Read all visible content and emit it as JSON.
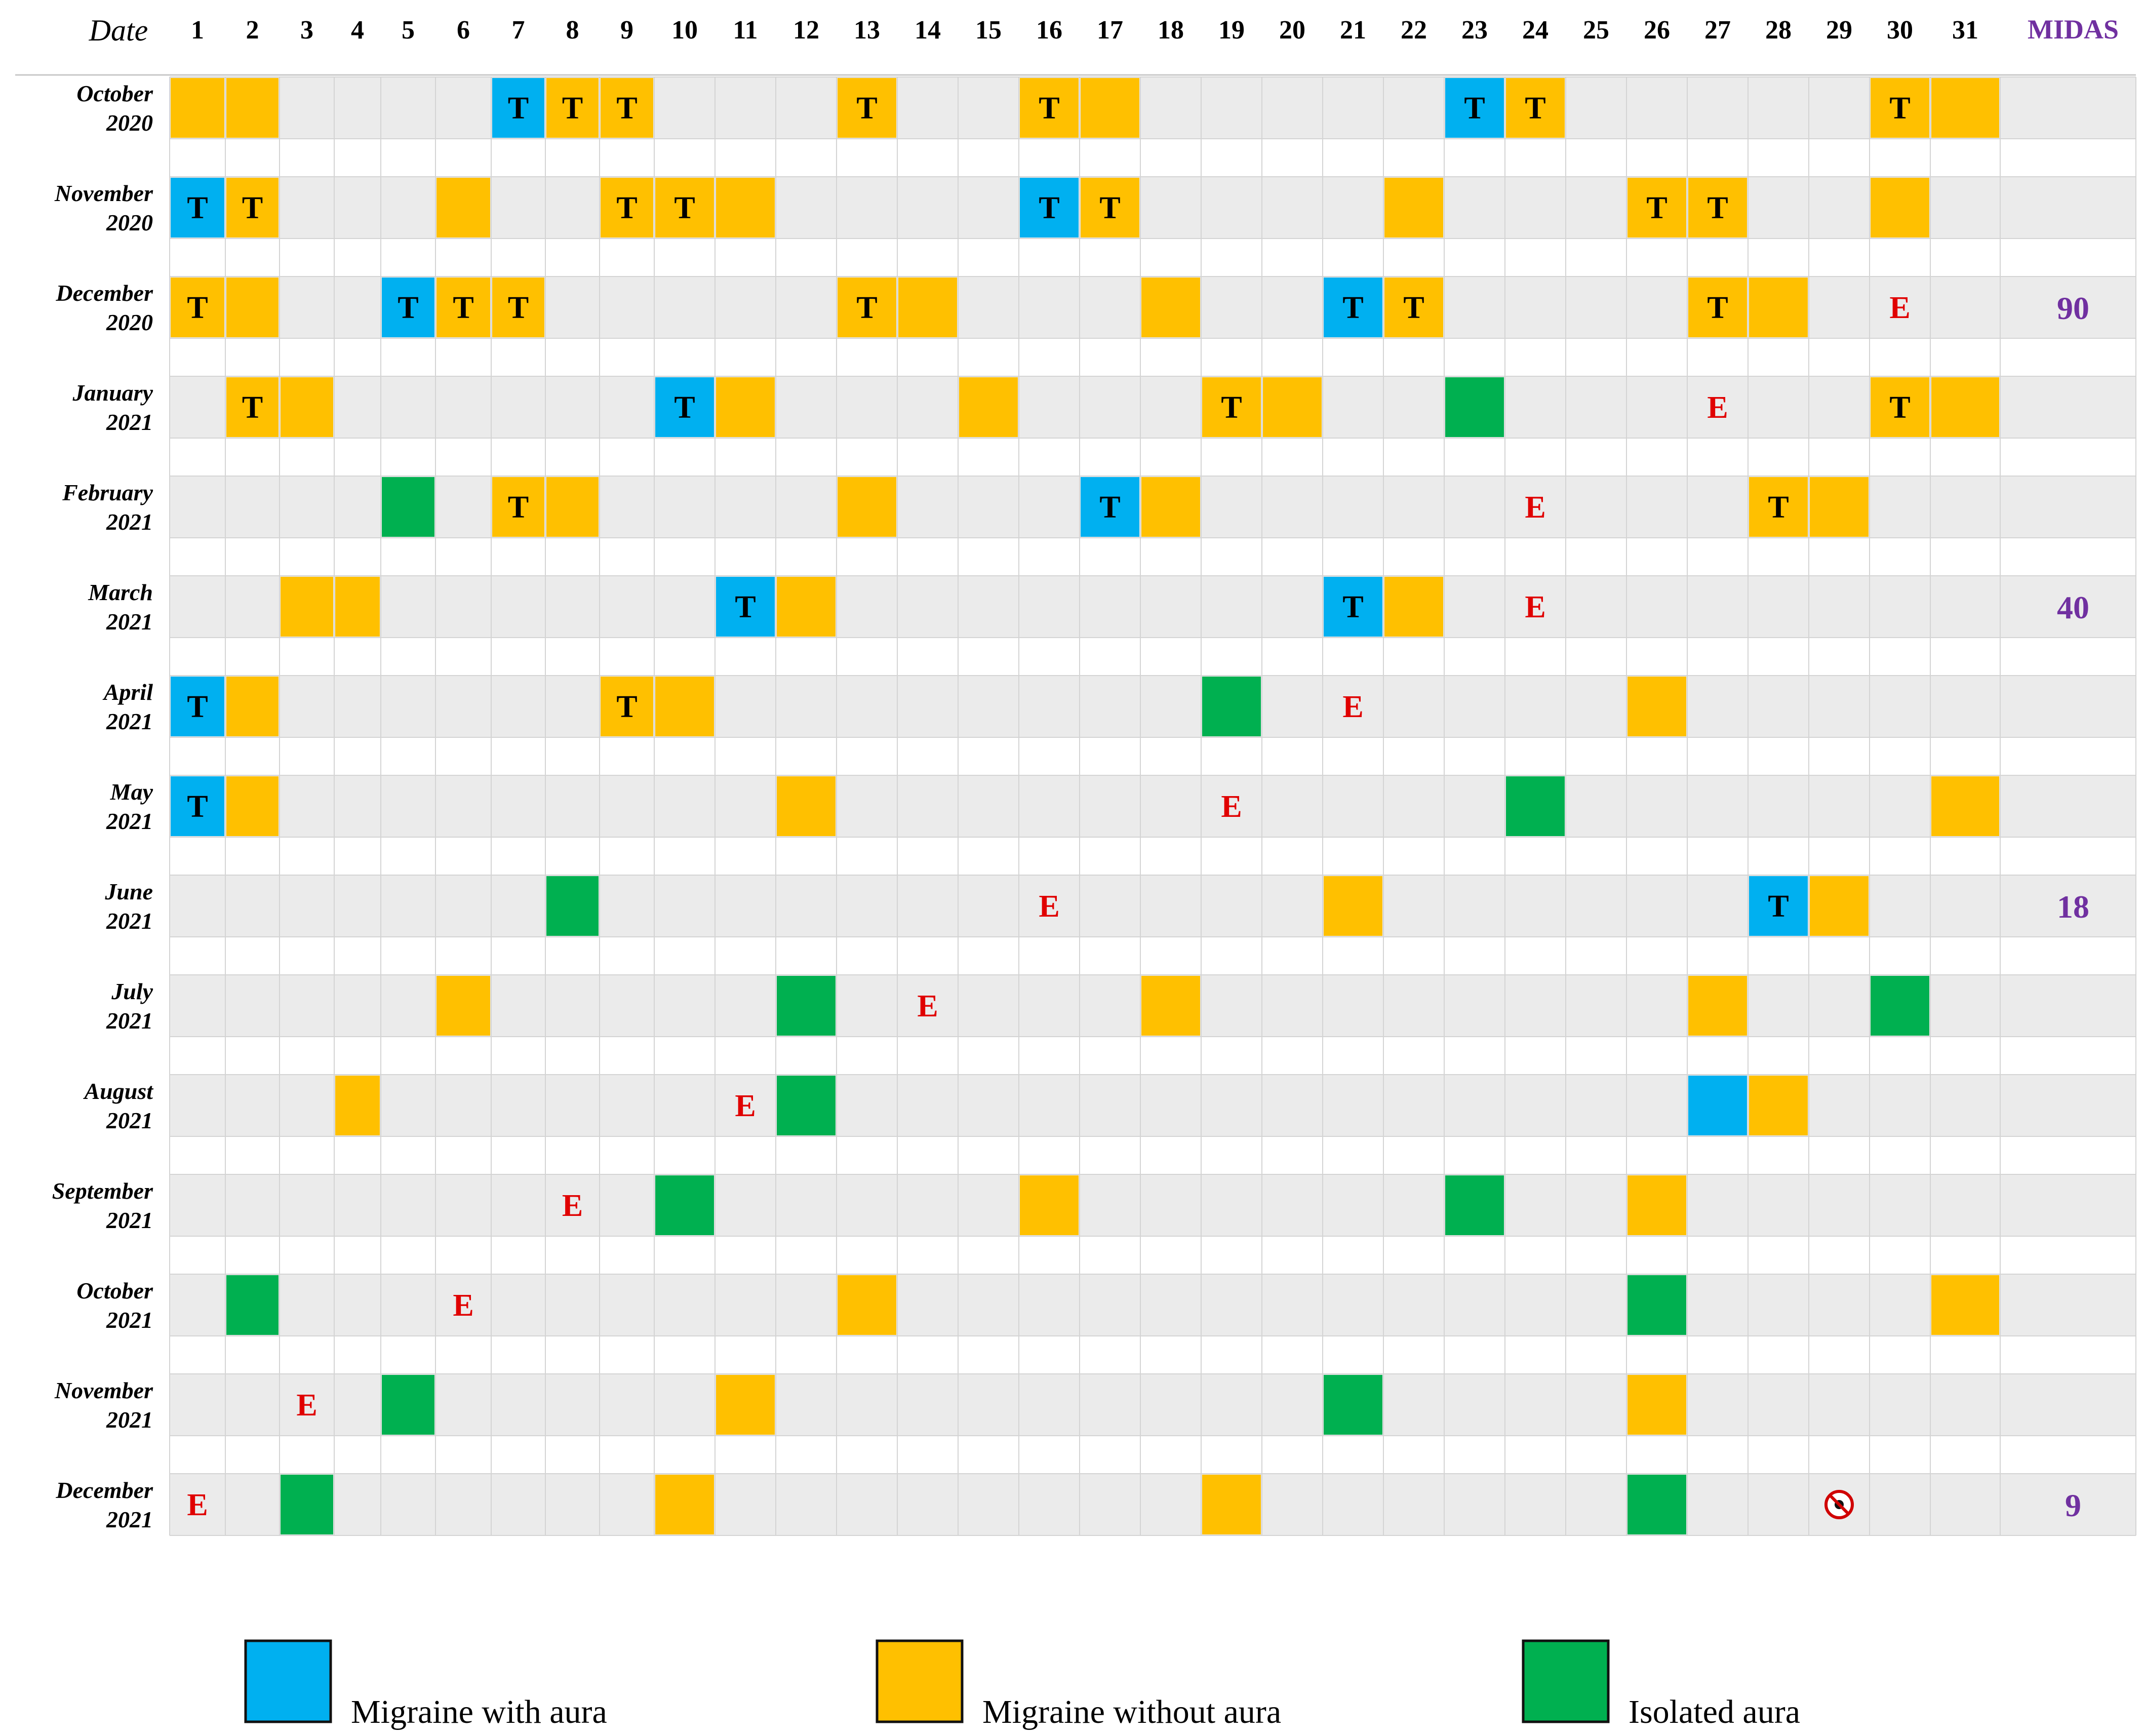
{
  "chart_data": {
    "type": "table",
    "header": {
      "date_label": "Date",
      "midas_label": "MIDAS"
    },
    "days": [
      1,
      2,
      3,
      4,
      5,
      6,
      7,
      8,
      9,
      10,
      11,
      12,
      13,
      14,
      15,
      16,
      17,
      18,
      19,
      20,
      21,
      22,
      23,
      24,
      25,
      26,
      27,
      28,
      29,
      30,
      31
    ],
    "categories": {
      "A": {
        "name": "Migraine with aura",
        "color": "#00b0f0"
      },
      "O": {
        "name": "Migraine without aura",
        "color": "#ffc000"
      },
      "G": {
        "name": "Isolated aura",
        "color": "#00b050"
      }
    },
    "legend": [
      {
        "key": "A",
        "label": "Migraine with aura"
      },
      {
        "key": "O",
        "label": "Migraine without aura"
      },
      {
        "key": "G",
        "label": "Isolated aura"
      }
    ],
    "marker_texts": {
      "T": "T",
      "E": "E"
    },
    "rows": [
      {
        "month": "October",
        "year": "2020",
        "midas": "",
        "e_day": null,
        "events": [
          {
            "day": 1,
            "type": "O"
          },
          {
            "day": 2,
            "type": "O"
          },
          {
            "day": 7,
            "type": "A",
            "t": true
          },
          {
            "day": 8,
            "type": "O",
            "t": true
          },
          {
            "day": 9,
            "type": "O",
            "t": true
          },
          {
            "day": 13,
            "type": "O",
            "t": true
          },
          {
            "day": 16,
            "type": "O",
            "t": true
          },
          {
            "day": 17,
            "type": "O"
          },
          {
            "day": 23,
            "type": "A",
            "t": true
          },
          {
            "day": 24,
            "type": "O",
            "t": true
          },
          {
            "day": 30,
            "type": "O",
            "t": true
          },
          {
            "day": 31,
            "type": "O"
          }
        ]
      },
      {
        "month": "November",
        "year": "2020",
        "midas": "",
        "e_day": null,
        "events": [
          {
            "day": 1,
            "type": "A",
            "t": true
          },
          {
            "day": 2,
            "type": "O",
            "t": true
          },
          {
            "day": 6,
            "type": "O"
          },
          {
            "day": 9,
            "type": "O",
            "t": true
          },
          {
            "day": 10,
            "type": "O",
            "t": true
          },
          {
            "day": 11,
            "type": "O"
          },
          {
            "day": 16,
            "type": "A",
            "t": true
          },
          {
            "day": 17,
            "type": "O",
            "t": true
          },
          {
            "day": 22,
            "type": "O"
          },
          {
            "day": 26,
            "type": "O",
            "t": true
          },
          {
            "day": 27,
            "type": "O",
            "t": true
          },
          {
            "day": 30,
            "type": "O"
          }
        ]
      },
      {
        "month": "December",
        "year": "2020",
        "midas": "90",
        "e_day": 30,
        "events": [
          {
            "day": 1,
            "type": "O",
            "t": true
          },
          {
            "day": 2,
            "type": "O"
          },
          {
            "day": 5,
            "type": "A",
            "t": true
          },
          {
            "day": 6,
            "type": "O",
            "t": true
          },
          {
            "day": 7,
            "type": "O",
            "t": true
          },
          {
            "day": 13,
            "type": "O",
            "t": true
          },
          {
            "day": 14,
            "type": "O"
          },
          {
            "day": 18,
            "type": "O"
          },
          {
            "day": 21,
            "type": "A",
            "t": true
          },
          {
            "day": 22,
            "type": "O",
            "t": true
          },
          {
            "day": 27,
            "type": "O",
            "t": true
          },
          {
            "day": 28,
            "type": "O"
          }
        ]
      },
      {
        "month": "January",
        "year": "2021",
        "midas": "",
        "e_day": 27,
        "events": [
          {
            "day": 2,
            "type": "O",
            "t": true
          },
          {
            "day": 3,
            "type": "O"
          },
          {
            "day": 10,
            "type": "A",
            "t": true
          },
          {
            "day": 11,
            "type": "O"
          },
          {
            "day": 15,
            "type": "O"
          },
          {
            "day": 19,
            "type": "O",
            "t": true
          },
          {
            "day": 20,
            "type": "O"
          },
          {
            "day": 23,
            "type": "G"
          },
          {
            "day": 30,
            "type": "O",
            "t": true
          },
          {
            "day": 31,
            "type": "O"
          }
        ]
      },
      {
        "month": "February",
        "year": "2021",
        "midas": "",
        "e_day": 24,
        "events": [
          {
            "day": 5,
            "type": "G"
          },
          {
            "day": 7,
            "type": "O",
            "t": true
          },
          {
            "day": 8,
            "type": "O"
          },
          {
            "day": 13,
            "type": "O"
          },
          {
            "day": 17,
            "type": "A",
            "t": true
          },
          {
            "day": 18,
            "type": "O"
          },
          {
            "day": 28,
            "type": "O",
            "t": true
          },
          {
            "day": 29,
            "type": "O"
          }
        ]
      },
      {
        "month": "March",
        "year": "2021",
        "midas": "40",
        "e_day": 24,
        "events": [
          {
            "day": 3,
            "type": "O"
          },
          {
            "day": 4,
            "type": "O"
          },
          {
            "day": 11,
            "type": "A",
            "t": true
          },
          {
            "day": 12,
            "type": "O"
          },
          {
            "day": 21,
            "type": "A",
            "t": true
          },
          {
            "day": 22,
            "type": "O"
          }
        ]
      },
      {
        "month": "April",
        "year": "2021",
        "midas": "",
        "e_day": 21,
        "events": [
          {
            "day": 1,
            "type": "A",
            "t": true
          },
          {
            "day": 2,
            "type": "O"
          },
          {
            "day": 9,
            "type": "O",
            "t": true
          },
          {
            "day": 10,
            "type": "O"
          },
          {
            "day": 19,
            "type": "G"
          },
          {
            "day": 26,
            "type": "O"
          }
        ]
      },
      {
        "month": "May",
        "year": "2021",
        "midas": "",
        "e_day": 19,
        "events": [
          {
            "day": 1,
            "type": "A",
            "t": true
          },
          {
            "day": 2,
            "type": "O"
          },
          {
            "day": 12,
            "type": "O"
          },
          {
            "day": 24,
            "type": "G"
          },
          {
            "day": 31,
            "type": "O"
          }
        ]
      },
      {
        "month": "June",
        "year": "2021",
        "midas": "18",
        "e_day": 16,
        "events": [
          {
            "day": 8,
            "type": "G"
          },
          {
            "day": 21,
            "type": "O"
          },
          {
            "day": 28,
            "type": "A",
            "t": true
          },
          {
            "day": 29,
            "type": "O"
          }
        ]
      },
      {
        "month": "July",
        "year": "2021",
        "midas": "",
        "e_day": 14,
        "events": [
          {
            "day": 6,
            "type": "O"
          },
          {
            "day": 12,
            "type": "G"
          },
          {
            "day": 18,
            "type": "O"
          },
          {
            "day": 27,
            "type": "O"
          },
          {
            "day": 30,
            "type": "G"
          }
        ]
      },
      {
        "month": "August",
        "year": "2021",
        "midas": "",
        "e_day": 11,
        "events": [
          {
            "day": 4,
            "type": "O"
          },
          {
            "day": 12,
            "type": "G"
          },
          {
            "day": 27,
            "type": "A"
          },
          {
            "day": 28,
            "type": "O"
          }
        ]
      },
      {
        "month": "September",
        "year": "2021",
        "midas": "",
        "e_day": 8,
        "events": [
          {
            "day": 10,
            "type": "G"
          },
          {
            "day": 16,
            "type": "O"
          },
          {
            "day": 23,
            "type": "G"
          },
          {
            "day": 26,
            "type": "O"
          }
        ]
      },
      {
        "month": "October",
        "year": "2021",
        "midas": "",
        "e_day": 6,
        "events": [
          {
            "day": 2,
            "type": "G"
          },
          {
            "day": 13,
            "type": "O"
          },
          {
            "day": 26,
            "type": "G"
          },
          {
            "day": 31,
            "type": "O"
          }
        ]
      },
      {
        "month": "November",
        "year": "2021",
        "midas": "",
        "e_day": 3,
        "events": [
          {
            "day": 5,
            "type": "G"
          },
          {
            "day": 11,
            "type": "O"
          },
          {
            "day": 21,
            "type": "G"
          },
          {
            "day": 26,
            "type": "O"
          }
        ]
      },
      {
        "month": "December",
        "year": "2021",
        "midas": "9",
        "e_day": 1,
        "special_day": 29,
        "events": [
          {
            "day": 3,
            "type": "G"
          },
          {
            "day": 10,
            "type": "O"
          },
          {
            "day": 19,
            "type": "O"
          },
          {
            "day": 26,
            "type": "G"
          }
        ]
      }
    ]
  }
}
